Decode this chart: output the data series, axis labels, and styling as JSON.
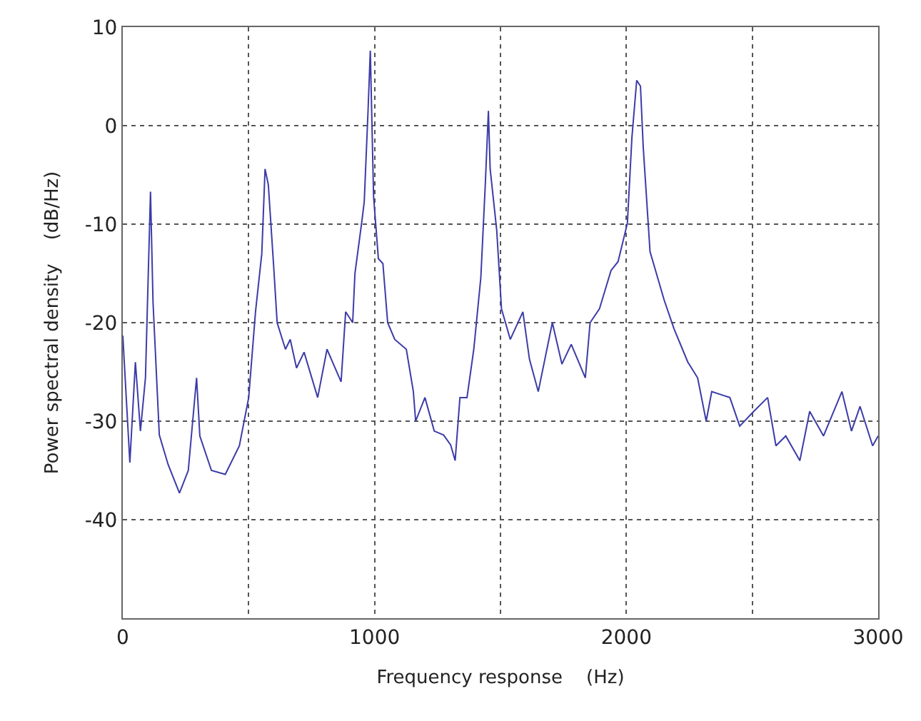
{
  "chart_data": {
    "type": "line",
    "xlabel": "Frequency response    (Hz)",
    "ylabel": "Power spectral density    (dB/Hz)",
    "x": [
      0,
      28,
      50,
      70,
      90,
      110,
      120,
      145,
      180,
      225,
      260,
      293,
      306,
      352,
      407,
      463,
      500,
      527,
      552,
      565,
      578,
      600,
      613,
      646,
      665,
      690,
      720,
      774,
      811,
      867,
      885,
      913,
      922,
      950,
      959,
      974,
      983,
      996,
      1015,
      1033,
      1052,
      1080,
      1126,
      1154,
      1163,
      1200,
      1237,
      1274,
      1302,
      1320,
      1339,
      1367,
      1394,
      1422,
      1440,
      1452,
      1459,
      1485,
      1504,
      1539,
      1589,
      1615,
      1650,
      1706,
      1744,
      1781,
      1837,
      1856,
      1893,
      1939,
      1967,
      2004,
      2022,
      2041,
      2056,
      2067,
      2094,
      2150,
      2189,
      2244,
      2283,
      2317,
      2339,
      2411,
      2450,
      2506,
      2561,
      2594,
      2633,
      2689,
      2728,
      2783,
      2856,
      2894,
      2928,
      2978,
      3000
    ],
    "series": [
      {
        "color": "#3c3ca8",
        "values": [
          -21.3,
          -34.2,
          -24,
          -31,
          -25.6,
          -6.7,
          -17.9,
          -31.4,
          -34.4,
          -37.3,
          -35,
          -25.6,
          -31.5,
          -35,
          -35.4,
          -32.5,
          -27.6,
          -18.9,
          -13,
          -4.4,
          -6,
          -14.6,
          -20,
          -22.7,
          -21.7,
          -24.6,
          -23,
          -27.6,
          -22.7,
          -26,
          -18.9,
          -20,
          -15,
          -9.6,
          -7.7,
          1.5,
          7.6,
          -7.2,
          -13.5,
          -14,
          -20,
          -21.7,
          -22.7,
          -27,
          -30,
          -27.6,
          -31,
          -31.4,
          -32.4,
          -34,
          -27.6,
          -27.6,
          -22.7,
          -15.4,
          -5.8,
          1.5,
          -4.4,
          -10.6,
          -18.6,
          -21.7,
          -18.9,
          -23.7,
          -27,
          -20,
          -24.2,
          -22.2,
          -25.6,
          -20,
          -18.6,
          -14.7,
          -13.8,
          -9.9,
          -1.2,
          4.6,
          4,
          -2.2,
          -12.8,
          -17.7,
          -20.6,
          -24,
          -25.6,
          -30,
          -27,
          -27.6,
          -30.5,
          -29,
          -27.6,
          -32.5,
          -31.5,
          -34,
          -29,
          -31.5,
          -27,
          -31,
          -28.5,
          -32.5,
          -31.5
        ]
      }
    ],
    "xlim": [
      0,
      3000
    ],
    "xticks": [
      0,
      {
        "value": 500,
        "label": null
      },
      1000,
      {
        "value": 1500,
        "label": null
      },
      2000,
      {
        "value": 2500,
        "label": null
      },
      3000
    ],
    "ylim": [
      -50,
      10
    ],
    "yticks": [
      -40,
      -30,
      -20,
      -10,
      0,
      10
    ],
    "grid": true,
    "marker": "none",
    "line_style": "solid"
  }
}
